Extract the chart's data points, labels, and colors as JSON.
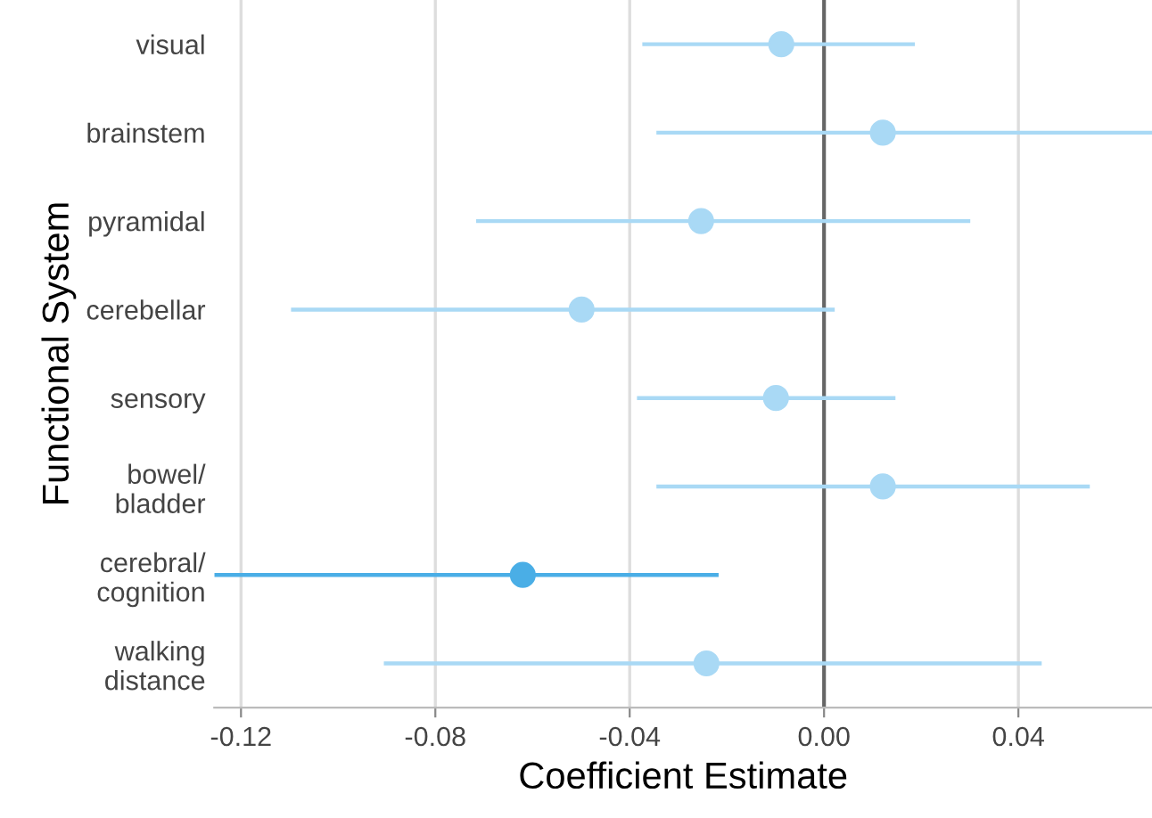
{
  "chart_data": {
    "type": "scatter",
    "orientation": "horizontal",
    "categories": [
      "visual",
      "brainstem",
      "pyramidal",
      "cerebellar",
      "sensory",
      "bowel/\nbladder",
      "cerebral/\ncognition",
      "walking\ndistance"
    ],
    "values": [
      -0.0088,
      0.0121,
      -0.0253,
      -0.0499,
      -0.0099,
      0.0121,
      -0.062,
      -0.0242
    ],
    "errors": [
      [
        -0.0374,
        0.0187
      ],
      [
        -0.0345,
        0.0675
      ],
      [
        -0.0716,
        0.0301
      ],
      [
        -0.1097,
        0.0022
      ],
      [
        -0.0385,
        0.0147
      ],
      [
        -0.0345,
        0.0547
      ],
      [
        -0.1255,
        -0.0217
      ],
      [
        -0.0906,
        0.0448
      ]
    ],
    "colors": [
      "#a9d9f5",
      "#a9d9f5",
      "#a9d9f5",
      "#a9d9f5",
      "#a9d9f5",
      "#a9d9f5",
      "#4aaee6",
      "#a9d9f5"
    ],
    "xlabel": "Coefficient Estimate",
    "ylabel": "Functional System",
    "xlim": [
      -0.1255,
      0.0675
    ],
    "xticks": [
      {
        "value": -0.12,
        "label": "-0.12"
      },
      {
        "value": -0.08,
        "label": "-0.08"
      },
      {
        "value": -0.04,
        "label": "-0.04"
      },
      {
        "value": 0.0,
        "label": "0.00"
      },
      {
        "value": 0.04,
        "label": "0.04"
      }
    ],
    "ref_lines": [
      {
        "axis": "x",
        "value": 0,
        "label": null,
        "color": "#666666"
      }
    ],
    "grid": "x",
    "marker": "circle"
  }
}
